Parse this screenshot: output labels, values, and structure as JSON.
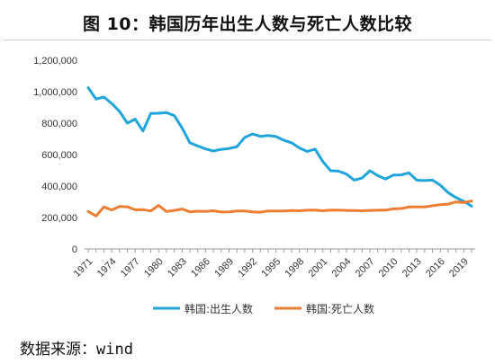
{
  "title": "图 10：韩国历年出生人数与死亡人数比较",
  "source": "数据来源：wind",
  "chart_data": {
    "type": "line",
    "title": "图 10：韩国历年出生人数与死亡人数比较",
    "xlabel": "",
    "ylabel": "",
    "x": [
      1971,
      1972,
      1973,
      1974,
      1975,
      1976,
      1977,
      1978,
      1979,
      1980,
      1981,
      1982,
      1983,
      1984,
      1985,
      1986,
      1987,
      1988,
      1989,
      1990,
      1991,
      1992,
      1993,
      1994,
      1995,
      1996,
      1997,
      1998,
      1999,
      2000,
      2001,
      2002,
      2003,
      2004,
      2005,
      2006,
      2007,
      2008,
      2009,
      2010,
      2011,
      2012,
      2013,
      2014,
      2015,
      2016,
      2017,
      2018,
      2019,
      2020
    ],
    "ylim": [
      0,
      1200000
    ],
    "yticks": [
      0,
      200000,
      400000,
      600000,
      800000,
      1000000,
      1200000
    ],
    "ytick_labels": [
      "0",
      "200,000",
      "400,000",
      "600,000",
      "800,000",
      "1,000,000",
      "1,200,000"
    ],
    "xticks": [
      1971,
      1974,
      1977,
      1980,
      1983,
      1986,
      1989,
      1992,
      1995,
      1998,
      2001,
      2004,
      2007,
      2010,
      2013,
      2016,
      2019
    ],
    "xtick_labels": [
      "1971",
      "1974",
      "1977",
      "1980",
      "1983",
      "1986",
      "1989",
      "1992",
      "1995",
      "1998",
      "2001",
      "2004",
      "2007",
      "2010",
      "2013",
      "2016",
      "2019"
    ],
    "grid": false,
    "legend_position": "bottom",
    "series": [
      {
        "name": "韩国:出生人数",
        "color": "#1fa5dc",
        "values": [
          1025000,
          953000,
          966000,
          925000,
          875000,
          800000,
          825000,
          750000,
          862000,
          863000,
          867000,
          848000,
          770000,
          675000,
          655000,
          636000,
          623000,
          633000,
          639000,
          650000,
          709000,
          731000,
          716000,
          721000,
          715000,
          691000,
          675000,
          642000,
          620000,
          635000,
          555000,
          497000,
          495000,
          476000,
          438000,
          451000,
          497000,
          466000,
          445000,
          470000,
          471000,
          484000,
          437000,
          435000,
          438000,
          406000,
          358000,
          327000,
          303000,
          272000
        ]
      },
      {
        "name": "韩国:死亡人数",
        "color": "#ed7d31",
        "values": [
          238000,
          210000,
          267000,
          248000,
          270000,
          268000,
          249000,
          250000,
          242000,
          277000,
          238000,
          245000,
          254000,
          236000,
          240000,
          239000,
          243000,
          235000,
          236000,
          241000,
          242000,
          236000,
          234000,
          242000,
          242000,
          241000,
          244000,
          243000,
          246000,
          247000,
          243000,
          247000,
          246000,
          245000,
          244000,
          243000,
          245000,
          246000,
          247000,
          255000,
          257000,
          267000,
          267000,
          267000,
          275000,
          281000,
          285000,
          299000,
          295000,
          305000
        ]
      }
    ]
  }
}
